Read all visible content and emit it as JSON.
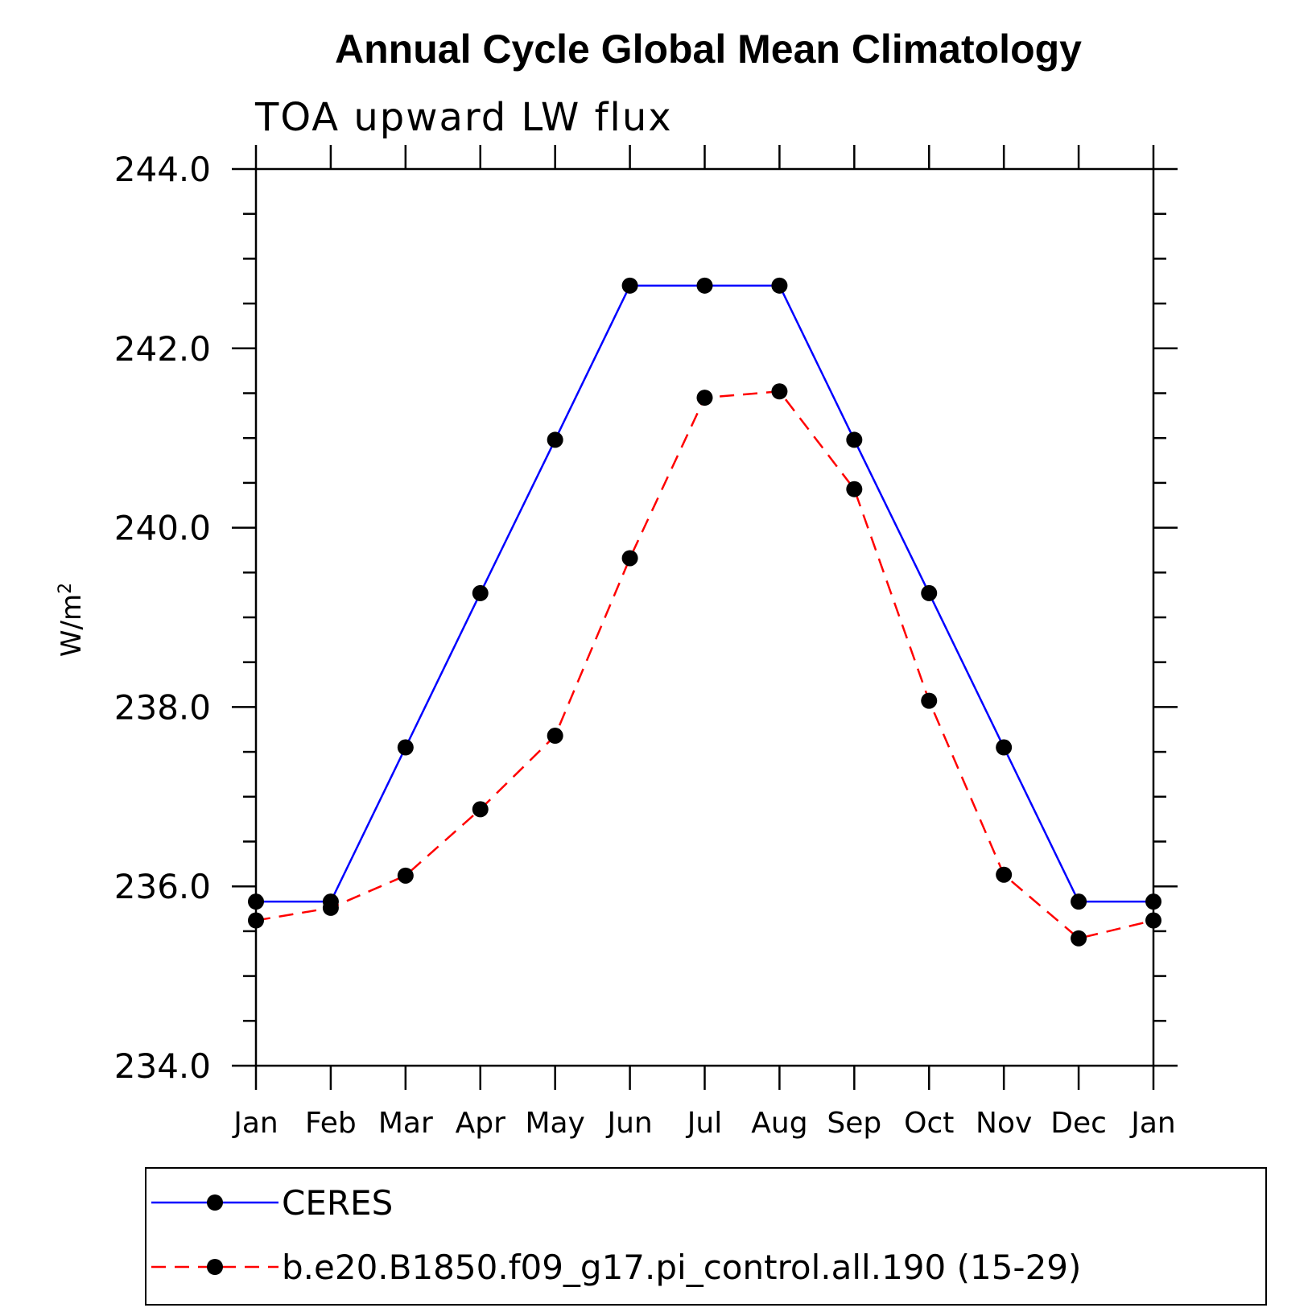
{
  "chart_data": {
    "type": "line",
    "title": "Annual Cycle Global Mean Climatology",
    "subtitle": "TOA upward LW flux",
    "ylabel": "W/m",
    "ylabel_superscript": "2",
    "xlabel": "",
    "categories": [
      "Jan",
      "Feb",
      "Mar",
      "Apr",
      "May",
      "Jun",
      "Jul",
      "Aug",
      "Sep",
      "Oct",
      "Nov",
      "Dec",
      "Jan"
    ],
    "ylim": [
      234.0,
      244.0
    ],
    "yticks": [
      234.0,
      236.0,
      238.0,
      240.0,
      242.0,
      244.0
    ],
    "ytick_labels": [
      "234.0",
      "236.0",
      "238.0",
      "240.0",
      "242.0",
      "244.0"
    ],
    "grid": false,
    "legend_position": "bottom",
    "series": [
      {
        "name": "CERES",
        "color": "#0000ff",
        "line_style": "solid",
        "marker": "filled-circle",
        "values": [
          235.83,
          235.83,
          237.55,
          239.27,
          240.98,
          242.7,
          242.7,
          242.7,
          240.98,
          239.27,
          237.55,
          235.83,
          235.83
        ]
      },
      {
        "name": "b.e20.B1850.f09_g17.pi_control.all.190 (15-29)",
        "color": "#ff0000",
        "line_style": "dashed",
        "marker": "filled-circle",
        "values": [
          235.62,
          235.76,
          236.12,
          236.86,
          237.68,
          239.66,
          241.45,
          241.52,
          240.43,
          238.07,
          236.13,
          235.42,
          235.62
        ]
      }
    ]
  }
}
